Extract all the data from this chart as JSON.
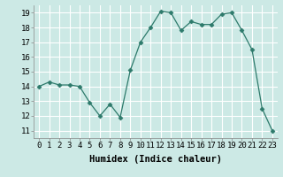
{
  "x": [
    0,
    1,
    2,
    3,
    4,
    5,
    6,
    7,
    8,
    9,
    10,
    11,
    12,
    13,
    14,
    15,
    16,
    17,
    18,
    19,
    20,
    21,
    22,
    23
  ],
  "y": [
    14.0,
    14.3,
    14.1,
    14.1,
    14.0,
    12.9,
    12.0,
    12.8,
    11.9,
    15.1,
    17.0,
    18.0,
    19.1,
    19.0,
    17.8,
    18.4,
    18.2,
    18.2,
    18.9,
    19.0,
    17.8,
    16.5,
    12.5,
    11.0
  ],
  "line_color": "#2d7a6b",
  "marker": "D",
  "marker_size": 2.5,
  "bg_color": "#cce9e5",
  "grid_color": "#ffffff",
  "xlabel": "Humidex (Indice chaleur)",
  "ylim": [
    10.5,
    19.5
  ],
  "xlim": [
    -0.5,
    23.5
  ],
  "yticks": [
    11,
    12,
    13,
    14,
    15,
    16,
    17,
    18,
    19
  ],
  "xticks": [
    0,
    1,
    2,
    3,
    4,
    5,
    6,
    7,
    8,
    9,
    10,
    11,
    12,
    13,
    14,
    15,
    16,
    17,
    18,
    19,
    20,
    21,
    22,
    23
  ],
  "xlabel_fontsize": 7.5,
  "tick_fontsize": 6.5
}
